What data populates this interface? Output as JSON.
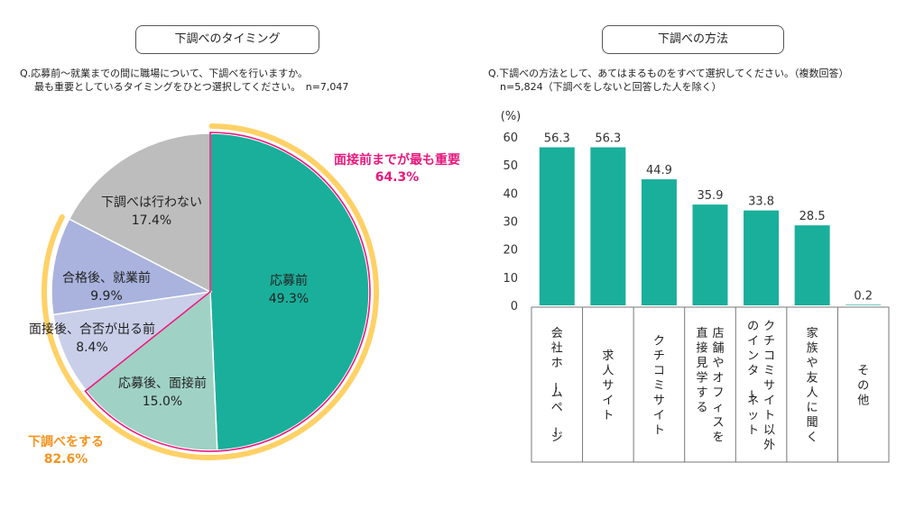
{
  "left": {
    "box_title": "下調べのタイミング",
    "question_line1": "Q.応募前～就業までの間に職場について、下調べを行いますか。",
    "question_line2": "最も重要としているタイミングをひとつ選択してください。　n=7,047",
    "callout_top_label": "面接前までが最も重要",
    "callout_top_value": "64.3%",
    "callout_bottom_label": "下調べをする",
    "callout_bottom_value": "82.6%"
  },
  "right": {
    "box_title": "下調べの方法",
    "question_line1": "Q.下調べの方法として、あてはまるものをすべて選択してください。（複数回答）",
    "question_line2": "n=5,824（下調べをしないと回答した人を除く）"
  },
  "colors": {
    "teal": "#1aaf9b",
    "light_teal": "#9fd2c4",
    "lavender_light": "#c9cfe9",
    "lavender": "#a9b3de",
    "gray": "#bdbdbd",
    "orange": "#ffd166",
    "magenta": "#e8197d",
    "orange_text": "#f7931e"
  },
  "chart_data": [
    {
      "type": "pie",
      "slices": [
        {
          "label": "応募前",
          "value": 49.3,
          "value_label": "49.3%",
          "color": "#1aaf9b"
        },
        {
          "label": "応募後、面接前",
          "value": 15.0,
          "value_label": "15.0%",
          "color": "#9fd2c4"
        },
        {
          "label": "面接後、合否が出る前",
          "value": 8.4,
          "value_label": "8.4%",
          "color": "#c9cfe9"
        },
        {
          "label": "合格後、就業前",
          "value": 9.9,
          "value_label": "9.9%",
          "color": "#a9b3de"
        },
        {
          "label": "下調べは行わない",
          "value": 17.4,
          "value_label": "17.4%",
          "color": "#bdbdbd"
        }
      ],
      "start_angle": "12 o'clock",
      "direction": "clockwise"
    },
    {
      "type": "bar",
      "categories": [
        "会社ホームページ",
        "求人サイト",
        "クチコミサイト",
        "店舗やオフィスを直接見学する",
        "クチコミサイト以外のインターネット",
        "家族や友人に聞く",
        "その他"
      ],
      "category_columns": [
        [
          "会社ホームページ"
        ],
        [
          "求人サイト"
        ],
        [
          "クチコミサイト"
        ],
        [
          "店舗やオフィスを",
          "直接見学する"
        ],
        [
          "クチコミサイト以外",
          "のインターネット"
        ],
        [
          "家族や友人に聞く"
        ],
        [
          "その他"
        ]
      ],
      "values": [
        56.3,
        56.3,
        44.9,
        35.9,
        33.8,
        28.5,
        0.2
      ],
      "value_labels": [
        "56.3",
        "56.3",
        "44.9",
        "35.9",
        "33.8",
        "28.5",
        "0.2"
      ],
      "ylabel": "(%)",
      "ylim": [
        0,
        60
      ],
      "yticks": [
        "0",
        "10",
        "20",
        "30",
        "40",
        "50",
        "60"
      ],
      "grid": false,
      "color": "#1aaf9b"
    }
  ]
}
